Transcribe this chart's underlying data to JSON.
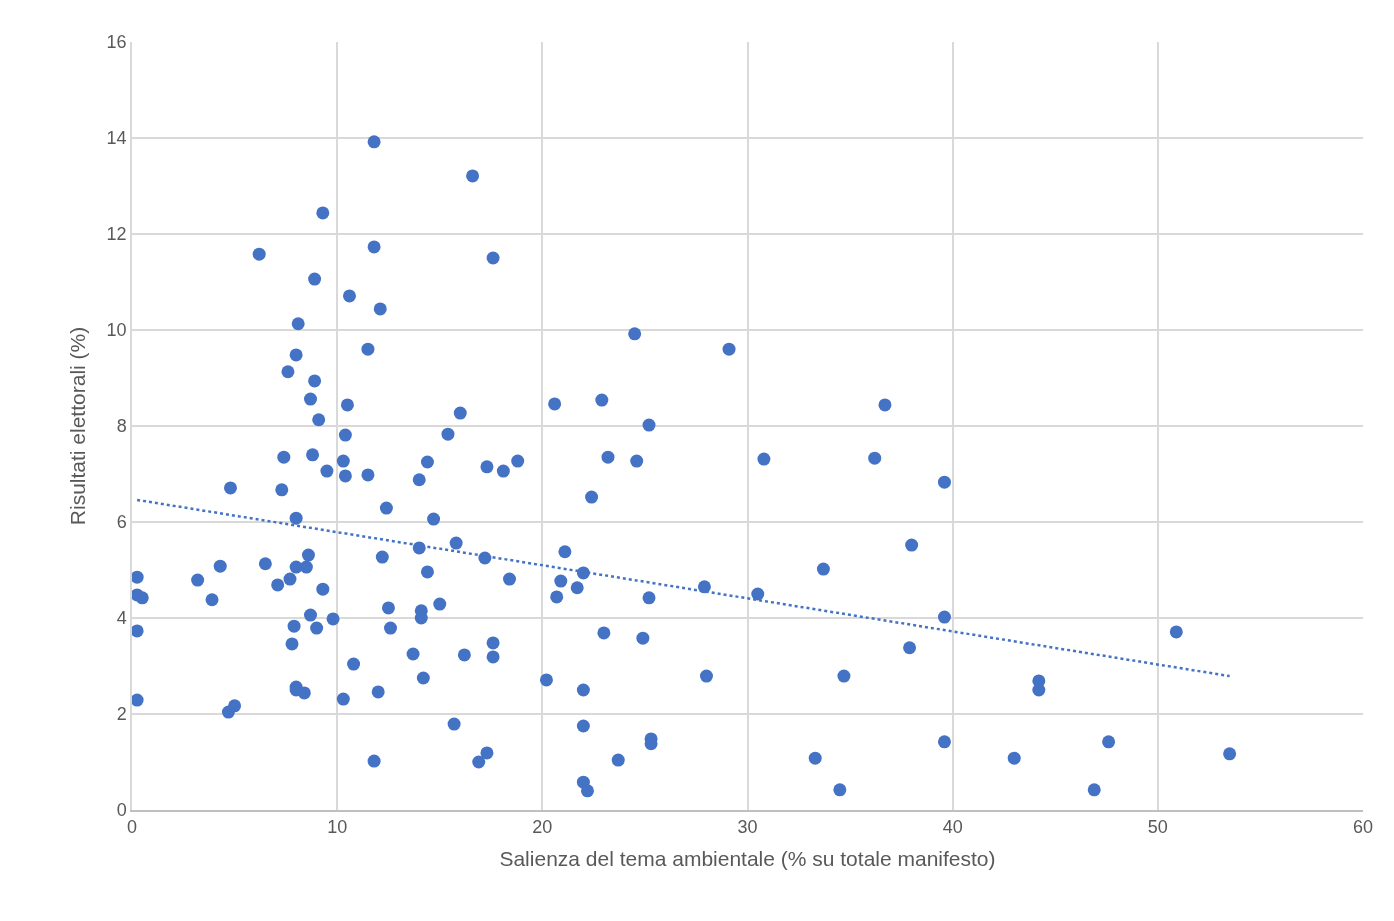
{
  "chart_data": {
    "type": "scatter",
    "xlabel": "Salienza del tema ambientale (% su totale manifesto)",
    "ylabel": "Risultati elettorali (%)",
    "xlim": [
      0,
      60
    ],
    "xticks": [
      0,
      10,
      20,
      30,
      40,
      50,
      60
    ],
    "ylim": [
      0,
      16
    ],
    "yticks": [
      0,
      2,
      4,
      6,
      8,
      10,
      12,
      14,
      16
    ],
    "grid": true,
    "marker": "circle",
    "series": [
      {
        "color": "#4472c4",
        "x": [
          0.25,
          0.25,
          0.5,
          0.25,
          0.25,
          3.2,
          3.9,
          4.3,
          4.8,
          4.7,
          5.0,
          6.2,
          6.5,
          7.1,
          7.3,
          7.4,
          7.6,
          7.7,
          7.8,
          7.9,
          8.0,
          8.0,
          8.1,
          8.0,
          8.0,
          8.0,
          8.4,
          8.5,
          8.6,
          8.7,
          8.7,
          8.8,
          8.9,
          8.9,
          9.0,
          9.1,
          9.3,
          9.3,
          9.5,
          9.8,
          10.3,
          10.3,
          10.4,
          10.4,
          10.5,
          10.6,
          10.8,
          11.5,
          11.5,
          11.8,
          11.8,
          11.8,
          12.0,
          12.1,
          12.2,
          12.4,
          12.5,
          12.6,
          13.7,
          14.0,
          14.0,
          14.1,
          14.1,
          14.2,
          14.4,
          14.4,
          14.7,
          15.0,
          15.4,
          15.7,
          15.8,
          16.0,
          16.2,
          16.6,
          16.9,
          17.2,
          17.3,
          17.3,
          17.6,
          17.6,
          17.6,
          18.1,
          18.4,
          18.8,
          20.2,
          20.6,
          20.7,
          20.9,
          21.1,
          21.7,
          22.0,
          22.0,
          22.0,
          22.0,
          22.2,
          22.4,
          22.9,
          23.0,
          23.2,
          23.7,
          24.5,
          24.6,
          24.9,
          25.2,
          25.2,
          25.3,
          25.3,
          27.9,
          28.0,
          29.1,
          30.5,
          30.8,
          33.3,
          33.7,
          34.5,
          34.7,
          36.2,
          36.7,
          37.9,
          38.0,
          39.6,
          39.6,
          39.6,
          43.0,
          44.2,
          44.2,
          46.9,
          47.6,
          50.9,
          53.5
        ],
        "values": [
          4.85,
          4.48,
          4.42,
          3.73,
          2.29,
          4.79,
          4.38,
          5.08,
          6.71,
          2.04,
          2.17,
          11.58,
          5.13,
          4.69,
          6.67,
          7.35,
          9.13,
          4.81,
          3.46,
          3.83,
          9.48,
          6.08,
          10.13,
          5.06,
          2.56,
          2.5,
          2.44,
          5.06,
          5.31,
          8.56,
          4.06,
          7.4,
          8.94,
          11.06,
          3.79,
          8.13,
          12.44,
          4.6,
          7.06,
          3.98,
          2.31,
          7.27,
          7.81,
          6.96,
          8.44,
          10.71,
          3.04,
          9.6,
          6.98,
          13.92,
          11.73,
          1.02,
          2.46,
          10.44,
          5.27,
          6.29,
          4.21,
          3.79,
          3.25,
          5.46,
          6.88,
          4.15,
          4.0,
          2.75,
          7.25,
          4.96,
          6.06,
          4.29,
          7.83,
          1.79,
          5.56,
          8.27,
          3.23,
          13.21,
          1.0,
          5.25,
          7.15,
          1.19,
          11.5,
          3.48,
          3.19,
          7.06,
          4.81,
          7.27,
          2.71,
          8.46,
          4.44,
          4.77,
          5.38,
          4.63,
          4.94,
          2.5,
          1.75,
          0.58,
          0.4,
          6.52,
          8.54,
          3.69,
          7.35,
          1.04,
          9.92,
          7.27,
          3.58,
          4.42,
          8.02,
          1.48,
          1.38,
          4.65,
          2.79,
          9.6,
          4.5,
          7.31,
          1.08,
          5.02,
          0.42,
          2.79,
          7.33,
          8.44,
          3.38,
          5.52,
          6.83,
          4.02,
          1.42,
          1.08,
          2.69,
          2.5,
          0.42,
          1.42,
          3.71,
          1.17
        ]
      },
      {
        "type": "line",
        "color": "#4472c4",
        "line_style": "dotted",
        "marker": "none",
        "x": [
          0.25,
          53.5
        ],
        "values": [
          6.46,
          2.79
        ]
      }
    ]
  }
}
